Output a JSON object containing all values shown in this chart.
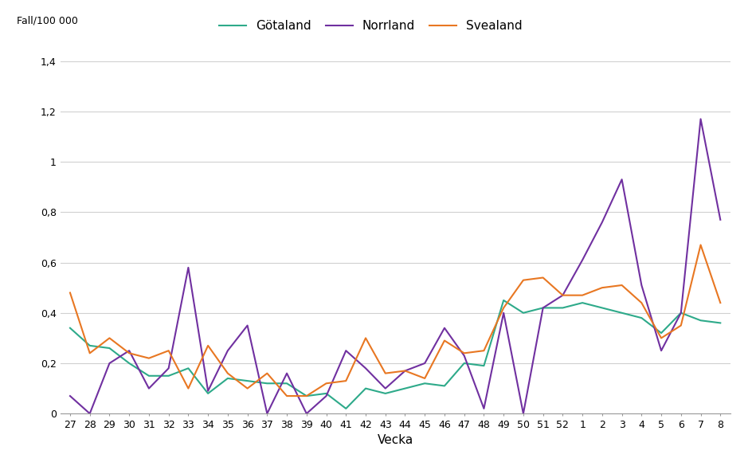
{
  "weeks": [
    "27",
    "28",
    "29",
    "30",
    "31",
    "32",
    "33",
    "34",
    "35",
    "36",
    "37",
    "38",
    "39",
    "40",
    "41",
    "42",
    "43",
    "44",
    "45",
    "46",
    "47",
    "48",
    "49",
    "50",
    "51",
    "52",
    "1",
    "2",
    "3",
    "4",
    "5",
    "6",
    "7",
    "8"
  ],
  "gotaland": [
    0.34,
    0.27,
    0.26,
    0.2,
    0.15,
    0.15,
    0.18,
    0.08,
    0.14,
    0.13,
    0.12,
    0.12,
    0.07,
    0.08,
    0.02,
    0.1,
    0.08,
    0.1,
    0.12,
    0.11,
    0.2,
    0.19,
    0.45,
    0.4,
    0.42,
    0.42,
    0.44,
    0.42,
    0.4,
    0.38,
    0.32,
    0.4,
    0.37,
    0.36
  ],
  "norrland": [
    0.07,
    0.0,
    0.2,
    0.25,
    0.1,
    0.18,
    0.58,
    0.09,
    0.25,
    0.35,
    0.0,
    0.16,
    0.0,
    0.07,
    0.25,
    0.18,
    0.1,
    0.17,
    0.2,
    0.34,
    0.23,
    0.02,
    0.4,
    0.0,
    0.42,
    0.47,
    0.61,
    0.76,
    0.93,
    0.51,
    0.25,
    0.4,
    1.17,
    0.77
  ],
  "svealand": [
    0.48,
    0.24,
    0.3,
    0.24,
    0.22,
    0.25,
    0.1,
    0.27,
    0.16,
    0.1,
    0.16,
    0.07,
    0.07,
    0.12,
    0.13,
    0.3,
    0.16,
    0.17,
    0.14,
    0.29,
    0.24,
    0.25,
    0.42,
    0.53,
    0.54,
    0.47,
    0.47,
    0.5,
    0.51,
    0.44,
    0.3,
    0.35,
    0.67,
    0.44
  ],
  "gotaland_color": "#2eaa8a",
  "norrland_color": "#7030a0",
  "svealand_color": "#e87722",
  "ylabel_text": "Fall/100 000",
  "xlabel": "Vecka",
  "ylim": [
    0,
    1.4
  ],
  "yticks": [
    0,
    0.2,
    0.4,
    0.6,
    0.8,
    1.0,
    1.2,
    1.4
  ],
  "ytick_labels": [
    "0",
    "0,2",
    "0,4",
    "0,6",
    "0,8",
    "1",
    "1,2",
    "1,4"
  ],
  "legend_labels": [
    "Götaland",
    "Norrland",
    "Svealand"
  ],
  "background_color": "#ffffff",
  "grid_color": "#d0d0d0",
  "line_width": 1.5,
  "tick_fontsize": 9,
  "label_fontsize": 11,
  "legend_fontsize": 11
}
